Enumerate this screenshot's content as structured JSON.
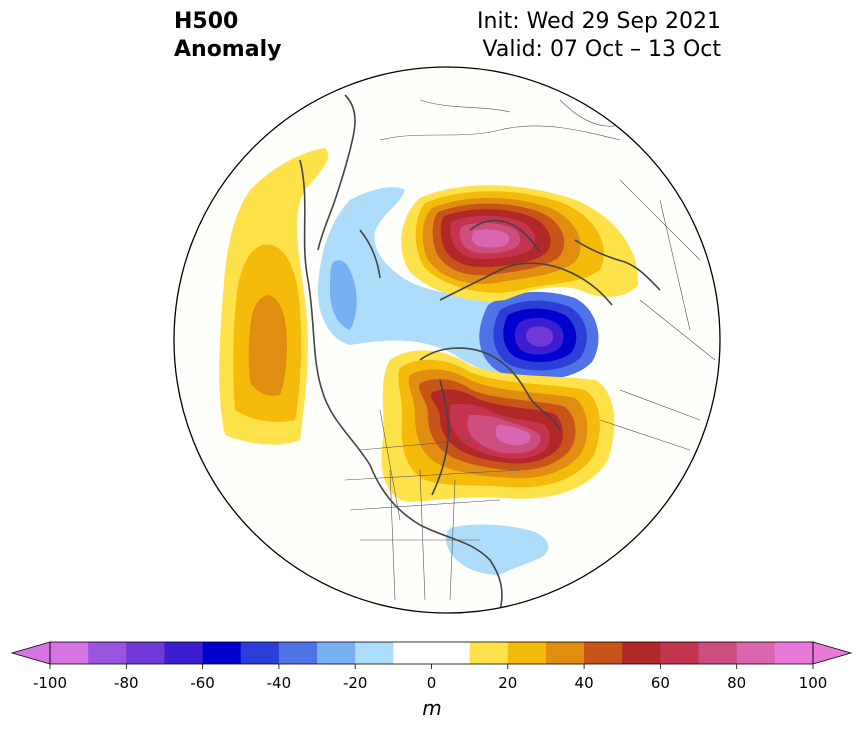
{
  "title": {
    "left_line1": "H500",
    "left_line2": "Anomaly",
    "init": "Init: Wed 29 Sep 2021",
    "valid": "Valid: 07 Oct – 13 Oct"
  },
  "colorbar": {
    "unit": "m",
    "levels": [
      -100,
      -90,
      -80,
      -70,
      -60,
      -50,
      -40,
      -30,
      -20,
      -10,
      10,
      20,
      30,
      40,
      50,
      60,
      70,
      80,
      90,
      100
    ],
    "tick_labels": [
      "-100",
      "-80",
      "-60",
      "-40",
      "-20",
      "0",
      "20",
      "40",
      "60",
      "80",
      "100"
    ],
    "neg_colors": [
      "#9a55e0",
      "#7038d6",
      "#3c1ed0",
      "#0000cc",
      "#2a3fd8",
      "#4f73e6",
      "#78b0f4",
      "#aedcfb"
    ],
    "pos_colors": [
      "#ffe24a",
      "#f4bb0a",
      "#e08d12",
      "#c9541a",
      "#b02828",
      "#c4344e",
      "#cc4e7f",
      "#da66b2"
    ],
    "under_color": "#d675e2",
    "over_color": "#e879d8"
  },
  "map": {
    "projection": "north-polar-stereographic",
    "ocean_color": "#fefefa",
    "coast_color": "#444444",
    "anomaly_centers": [
      {
        "name": "scandinavia-ridge",
        "peak": 90
      },
      {
        "name": "barents-trough",
        "peak": -75
      },
      {
        "name": "canada-ridge",
        "peak": 85
      },
      {
        "name": "pacific-ridge",
        "peak": 35
      },
      {
        "name": "atlantic-trough",
        "peak": -35
      },
      {
        "name": "us-east-trough",
        "peak": -15
      }
    ]
  }
}
